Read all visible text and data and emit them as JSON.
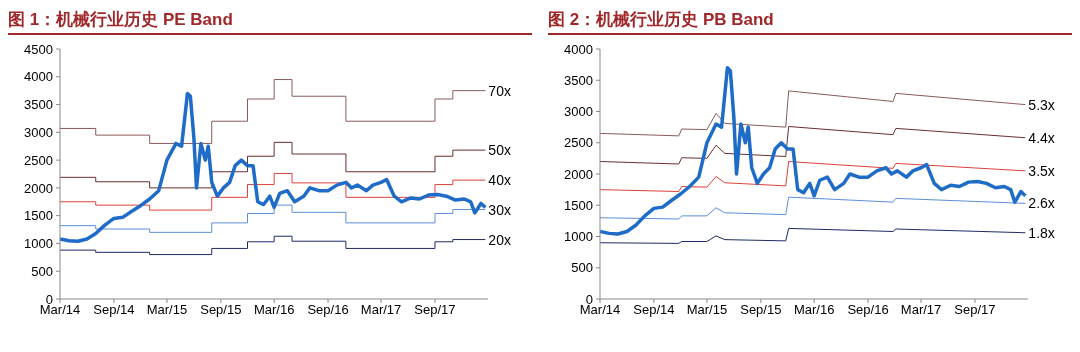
{
  "chart_data": [
    {
      "type": "line",
      "title": "图 1：机械行业历史 PE Band",
      "marker": "none",
      "xlim": [
        "2014-03-01",
        "2018-03-01"
      ],
      "xticks": [
        {
          "value": "2014-03-01",
          "label": "Mar/14"
        },
        {
          "value": "2014-09-01",
          "label": "Sep/14"
        },
        {
          "value": "2015-03-01",
          "label": "Mar/15"
        },
        {
          "value": "2015-09-01",
          "label": "Sep/15"
        },
        {
          "value": "2016-03-01",
          "label": "Mar/16"
        },
        {
          "value": "2016-09-01",
          "label": "Sep/16"
        },
        {
          "value": "2017-03-01",
          "label": "Mar/17"
        },
        {
          "value": "2017-09-01",
          "label": "Sep/17"
        }
      ],
      "ylim": [
        0,
        4500
      ],
      "yticks": [
        0,
        500,
        1000,
        1500,
        2000,
        2500,
        3000,
        3500,
        4000,
        4500
      ],
      "series": [
        {
          "name": "70x",
          "type": "step",
          "color": "#8a5a5a",
          "x": [
            "2014-03-01",
            "2014-07-01",
            "2015-01-01",
            "2015-08-01",
            "2015-12-01",
            "2016-03-01",
            "2016-05-01",
            "2016-11-01",
            "2017-09-01",
            "2017-11-01",
            "2018-02-20"
          ],
          "values": [
            3070,
            2950,
            2800,
            3200,
            3600,
            3950,
            3650,
            3200,
            3600,
            3750,
            3750
          ]
        },
        {
          "name": "50x",
          "type": "step",
          "color": "#6b2e2e",
          "x": [
            "2014-03-01",
            "2014-07-01",
            "2015-01-01",
            "2015-08-01",
            "2015-12-01",
            "2016-03-01",
            "2016-05-01",
            "2016-11-01",
            "2017-09-01",
            "2017-11-01",
            "2018-02-20"
          ],
          "values": [
            2190,
            2110,
            2000,
            2290,
            2570,
            2820,
            2610,
            2290,
            2570,
            2680,
            2680
          ]
        },
        {
          "name": "40x",
          "type": "step",
          "color": "#e0403a",
          "x": [
            "2014-03-01",
            "2014-07-01",
            "2015-01-01",
            "2015-08-01",
            "2015-12-01",
            "2016-03-01",
            "2016-05-01",
            "2016-11-01",
            "2017-09-01",
            "2017-11-01",
            "2018-02-20"
          ],
          "values": [
            1750,
            1690,
            1600,
            1830,
            2060,
            2260,
            2090,
            1830,
            2060,
            2140,
            2140
          ]
        },
        {
          "name": "30x",
          "type": "step",
          "color": "#5b8ed8",
          "x": [
            "2014-03-01",
            "2014-07-01",
            "2015-01-01",
            "2015-08-01",
            "2015-12-01",
            "2016-03-01",
            "2016-05-01",
            "2016-11-01",
            "2017-09-01",
            "2017-11-01",
            "2018-02-20"
          ],
          "values": [
            1320,
            1260,
            1200,
            1370,
            1540,
            1690,
            1560,
            1370,
            1540,
            1610,
            1610
          ]
        },
        {
          "name": "20x",
          "type": "step",
          "color": "#1c2a66",
          "x": [
            "2014-03-01",
            "2014-07-01",
            "2015-01-01",
            "2015-08-01",
            "2015-12-01",
            "2016-03-01",
            "2016-05-01",
            "2016-11-01",
            "2017-09-01",
            "2017-11-01",
            "2018-02-20"
          ],
          "values": [
            880,
            840,
            800,
            910,
            1030,
            1130,
            1040,
            910,
            1030,
            1070,
            1070
          ]
        },
        {
          "type": "line",
          "color": "#1f6cc8",
          "x": [
            "2014-03-01",
            "2014-04-01",
            "2014-05-01",
            "2014-06-01",
            "2014-07-01",
            "2014-08-01",
            "2014-09-01",
            "2014-10-01",
            "2014-11-01",
            "2014-12-01",
            "2015-01-01",
            "2015-02-01",
            "2015-03-01",
            "2015-04-01",
            "2015-04-20",
            "2015-05-10",
            "2015-05-20",
            "2015-06-01",
            "2015-06-10",
            "2015-06-25",
            "2015-07-10",
            "2015-07-20",
            "2015-08-01",
            "2015-08-20",
            "2015-09-10",
            "2015-10-01",
            "2015-10-20",
            "2015-11-10",
            "2015-12-01",
            "2015-12-20",
            "2016-01-05",
            "2016-01-25",
            "2016-02-15",
            "2016-03-01",
            "2016-03-20",
            "2016-04-15",
            "2016-05-10",
            "2016-06-10",
            "2016-07-01",
            "2016-08-01",
            "2016-09-01",
            "2016-10-01",
            "2016-11-01",
            "2016-11-20",
            "2016-12-10",
            "2017-01-10",
            "2017-02-01",
            "2017-03-01",
            "2017-03-20",
            "2017-04-15",
            "2017-05-10",
            "2017-06-10",
            "2017-07-10",
            "2017-08-10",
            "2017-09-10",
            "2017-10-10",
            "2017-11-10",
            "2017-12-10",
            "2018-01-01",
            "2018-01-15",
            "2018-02-05",
            "2018-02-20"
          ],
          "values": [
            1080,
            1050,
            1040,
            1080,
            1180,
            1330,
            1450,
            1470,
            1580,
            1680,
            1800,
            1950,
            2500,
            2800,
            2750,
            3700,
            3650,
            2900,
            2000,
            2800,
            2500,
            2750,
            2100,
            1850,
            2000,
            2100,
            2400,
            2500,
            2400,
            2400,
            1750,
            1700,
            1850,
            1650,
            1900,
            1950,
            1750,
            1850,
            2000,
            1950,
            1950,
            2050,
            2100,
            2000,
            2050,
            1950,
            2050,
            2100,
            2150,
            1850,
            1750,
            1820,
            1800,
            1870,
            1880,
            1850,
            1780,
            1800,
            1750,
            1550,
            1720,
            1650
          ]
        }
      ]
    },
    {
      "type": "line",
      "title": "图 2：机械行业历史 PB Band",
      "marker": "none",
      "xlim": [
        "2014-03-01",
        "2018-03-01"
      ],
      "xticks": [
        {
          "value": "2014-03-01",
          "label": "Mar/14"
        },
        {
          "value": "2014-09-01",
          "label": "Sep/14"
        },
        {
          "value": "2015-03-01",
          "label": "Mar/15"
        },
        {
          "value": "2015-09-01",
          "label": "Sep/15"
        },
        {
          "value": "2016-03-01",
          "label": "Mar/16"
        },
        {
          "value": "2016-09-01",
          "label": "Sep/16"
        },
        {
          "value": "2017-03-01",
          "label": "Mar/17"
        },
        {
          "value": "2017-09-01",
          "label": "Sep/17"
        }
      ],
      "ylim": [
        0,
        4000
      ],
      "yticks": [
        0,
        500,
        1000,
        1500,
        2000,
        2500,
        3000,
        3500,
        4000
      ],
      "series": [
        {
          "name": "5.3x",
          "type": "line",
          "color": "#8a5a5a",
          "x": [
            "2014-03-01",
            "2014-11-25",
            "2014-12-05",
            "2015-03-01",
            "2015-04-01",
            "2015-05-01",
            "2015-11-25",
            "2015-12-05",
            "2016-11-25",
            "2016-12-05",
            "2018-02-20"
          ],
          "values": [
            2650,
            2610,
            2720,
            2710,
            2970,
            2810,
            2750,
            3330,
            3160,
            3290,
            3110
          ]
        },
        {
          "name": "4.4x",
          "type": "line",
          "color": "#6b2e2e",
          "x": [
            "2014-03-01",
            "2014-11-25",
            "2014-12-05",
            "2015-03-01",
            "2015-04-01",
            "2015-05-01",
            "2015-11-25",
            "2015-12-05",
            "2016-11-25",
            "2016-12-05",
            "2018-02-20"
          ],
          "values": [
            2200,
            2160,
            2260,
            2250,
            2460,
            2330,
            2280,
            2760,
            2630,
            2730,
            2580
          ]
        },
        {
          "name": "3.5x",
          "type": "line",
          "color": "#e0403a",
          "x": [
            "2014-03-01",
            "2014-11-25",
            "2014-12-05",
            "2015-03-01",
            "2015-04-01",
            "2015-05-01",
            "2015-11-25",
            "2015-12-05",
            "2016-11-25",
            "2016-12-05",
            "2018-02-20"
          ],
          "values": [
            1750,
            1720,
            1800,
            1790,
            1960,
            1860,
            1810,
            2200,
            2090,
            2170,
            2050
          ]
        },
        {
          "name": "2.6x",
          "type": "line",
          "color": "#5b8ed8",
          "x": [
            "2014-03-01",
            "2014-11-25",
            "2014-12-05",
            "2015-03-01",
            "2015-04-01",
            "2015-05-01",
            "2015-11-25",
            "2015-12-05",
            "2016-11-25",
            "2016-12-05",
            "2018-02-20"
          ],
          "values": [
            1300,
            1280,
            1330,
            1330,
            1460,
            1380,
            1350,
            1630,
            1550,
            1610,
            1530
          ]
        },
        {
          "name": "1.8x",
          "type": "line",
          "color": "#1c2a66",
          "x": [
            "2014-03-01",
            "2014-11-25",
            "2014-12-05",
            "2015-03-01",
            "2015-04-01",
            "2015-05-01",
            "2015-11-25",
            "2015-12-05",
            "2016-11-25",
            "2016-12-05",
            "2018-02-20"
          ],
          "values": [
            900,
            890,
            920,
            920,
            1010,
            950,
            930,
            1130,
            1080,
            1120,
            1060
          ]
        },
        {
          "type": "line",
          "color": "#1f6cc8",
          "x": [
            "2014-03-01",
            "2014-04-01",
            "2014-05-01",
            "2014-06-01",
            "2014-07-01",
            "2014-08-01",
            "2014-09-01",
            "2014-10-01",
            "2014-11-01",
            "2014-12-01",
            "2015-01-01",
            "2015-02-01",
            "2015-03-01",
            "2015-04-01",
            "2015-04-20",
            "2015-05-10",
            "2015-05-20",
            "2015-06-01",
            "2015-06-10",
            "2015-06-25",
            "2015-07-10",
            "2015-07-20",
            "2015-08-01",
            "2015-08-20",
            "2015-09-10",
            "2015-10-01",
            "2015-10-20",
            "2015-11-10",
            "2015-12-01",
            "2015-12-20",
            "2016-01-05",
            "2016-01-25",
            "2016-02-15",
            "2016-03-01",
            "2016-03-20",
            "2016-04-15",
            "2016-05-10",
            "2016-06-10",
            "2016-07-01",
            "2016-08-01",
            "2016-09-01",
            "2016-10-01",
            "2016-11-01",
            "2016-11-20",
            "2016-12-10",
            "2017-01-10",
            "2017-02-01",
            "2017-03-01",
            "2017-03-20",
            "2017-04-15",
            "2017-05-10",
            "2017-06-10",
            "2017-07-10",
            "2017-08-10",
            "2017-09-10",
            "2017-10-10",
            "2017-11-10",
            "2017-12-10",
            "2018-01-01",
            "2018-01-15",
            "2018-02-05",
            "2018-02-20"
          ],
          "values": [
            1080,
            1050,
            1040,
            1080,
            1180,
            1330,
            1450,
            1470,
            1580,
            1680,
            1800,
            1950,
            2500,
            2800,
            2750,
            3700,
            3650,
            2900,
            2000,
            2800,
            2500,
            2750,
            2100,
            1850,
            2000,
            2100,
            2400,
            2500,
            2400,
            2400,
            1750,
            1700,
            1850,
            1650,
            1900,
            1950,
            1750,
            1850,
            2000,
            1950,
            1950,
            2050,
            2100,
            2000,
            2050,
            1950,
            2050,
            2100,
            2150,
            1850,
            1750,
            1820,
            1800,
            1870,
            1880,
            1850,
            1780,
            1800,
            1750,
            1550,
            1720,
            1650
          ]
        }
      ]
    }
  ]
}
